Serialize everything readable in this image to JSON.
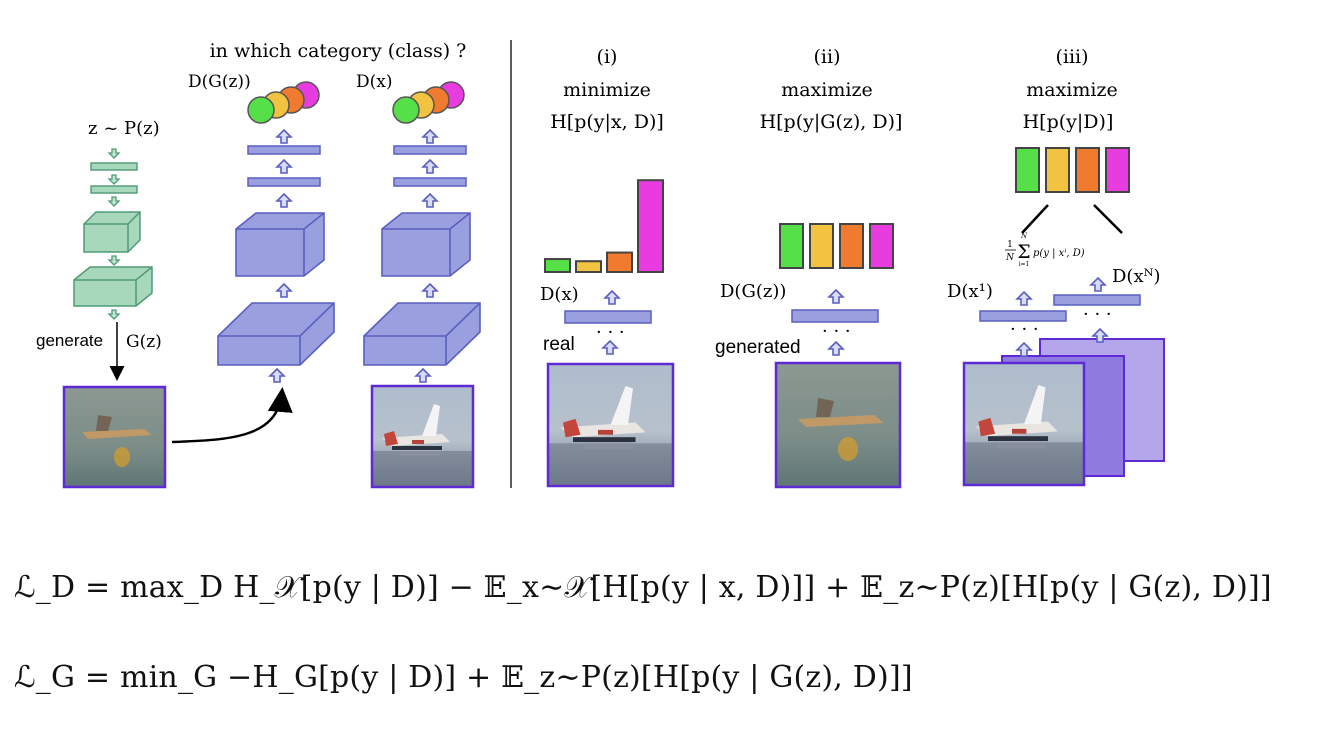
{
  "left_panel": {
    "question": "in which category (class) ?",
    "dgz_label": "D(G(z))",
    "dx_label": "D(x)",
    "z_prior": "z ~ P(z)",
    "generate_label": "generate",
    "gz_label": "G(z)"
  },
  "columns": [
    {
      "index": "(i)",
      "op": "minimize",
      "expr": "H[p(y|x, D)]",
      "d_label": "D(x)",
      "input_label": "real"
    },
    {
      "index": "(ii)",
      "op": "maximize",
      "expr": "H[p(y|G(z), D)]",
      "d_label": "D(G(z))",
      "input_label": "generated"
    },
    {
      "index": "(iii)",
      "op": "maximize",
      "expr": "H[p(y|D)]",
      "d_label_1": "D(x¹)",
      "d_label_n": "D(xᴺ)",
      "avg_formula": "1/N Σ p(y | xⁱ, D)",
      "sum_upper": "N",
      "sum_lower": "i=1"
    }
  ],
  "bar_values": {
    "col1": [
      0.12,
      0.1,
      0.18,
      0.85
    ],
    "col2": [
      0.5,
      0.5,
      0.5,
      0.5
    ],
    "col3": [
      0.5,
      0.5,
      0.5,
      0.5
    ]
  },
  "colors": {
    "green": "#55e04a",
    "yellow": "#f2c340",
    "orange": "#f07a2e",
    "magenta": "#e83ce0",
    "layer_fill": "#9a9fe0",
    "layer_stroke": "#5a5fc0",
    "gen_fill": "#a8d8bc",
    "gen_stroke": "#4f9a74",
    "image_border": "#5d2ad6"
  },
  "equations": {
    "ld": "ℒ_D = max_D H_𝒳[p(y | D)] − 𝔼_x∼𝒳[H[p(y | x, D)]] + 𝔼_z∼P(z)[H[p(y | G(z), D)]]",
    "lg": "ℒ_G = min_G −H_G[p(y | D)] + 𝔼_z∼P(z)[H[p(y | G(z), D)]]"
  }
}
